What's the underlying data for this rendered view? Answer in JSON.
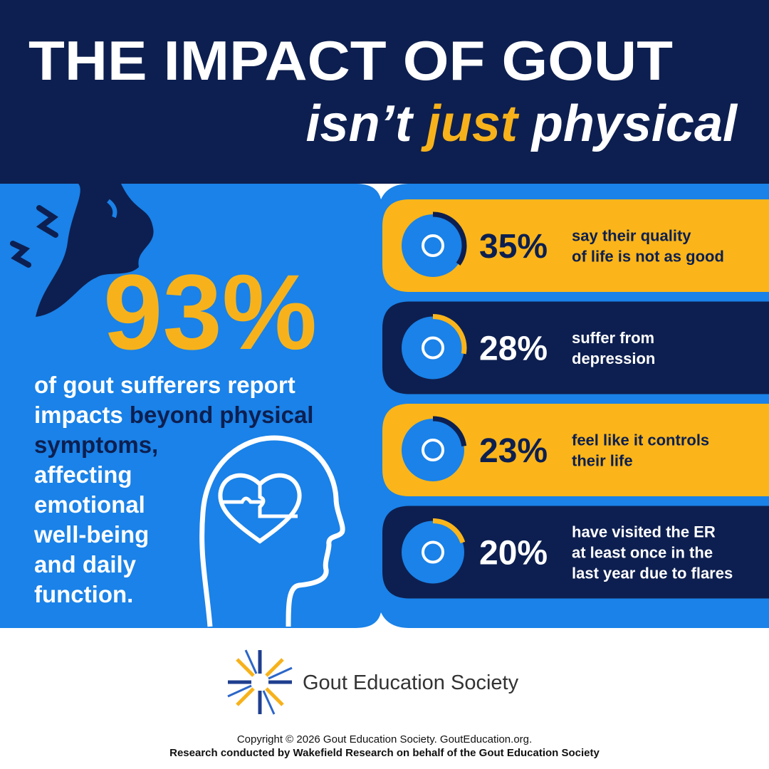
{
  "header": {
    "title": "THE IMPACT OF GOUT",
    "subtitle": [
      "isn’t ",
      "just",
      " physical"
    ]
  },
  "headline": {
    "stat": "93%",
    "description": [
      [
        "of gout sufferers report"
      ],
      [
        "impacts ",
        "beyond physical"
      ],
      [
        "symptoms,"
      ],
      [
        "affecting"
      ],
      [
        "emotional"
      ],
      [
        "well-being"
      ],
      [
        "and daily"
      ],
      [
        "function."
      ]
    ]
  },
  "stats": [
    {
      "percent": {
        "value": 35,
        "label": "35%"
      },
      "text": [
        "say their quality",
        "of life is not as good"
      ]
    },
    {
      "percent": {
        "value": 28,
        "label": "28%"
      },
      "text": [
        "suffer from",
        "depression"
      ]
    },
    {
      "percent": {
        "value": 23,
        "label": "23%"
      },
      "text": [
        "feel like it controls",
        "their life"
      ]
    },
    {
      "percent": {
        "value": 20,
        "label": "20%"
      },
      "text": [
        "have visited the ER",
        "at least once in the",
        "last year due to flares"
      ]
    }
  ],
  "footer": {
    "organization": "Gout Education Society",
    "copyright": "Copyright © 2026 Gout Education Society. GoutEducation.org.",
    "research": "Research conducted by Wakefield Research on behalf of the Gout Education Society"
  }
}
